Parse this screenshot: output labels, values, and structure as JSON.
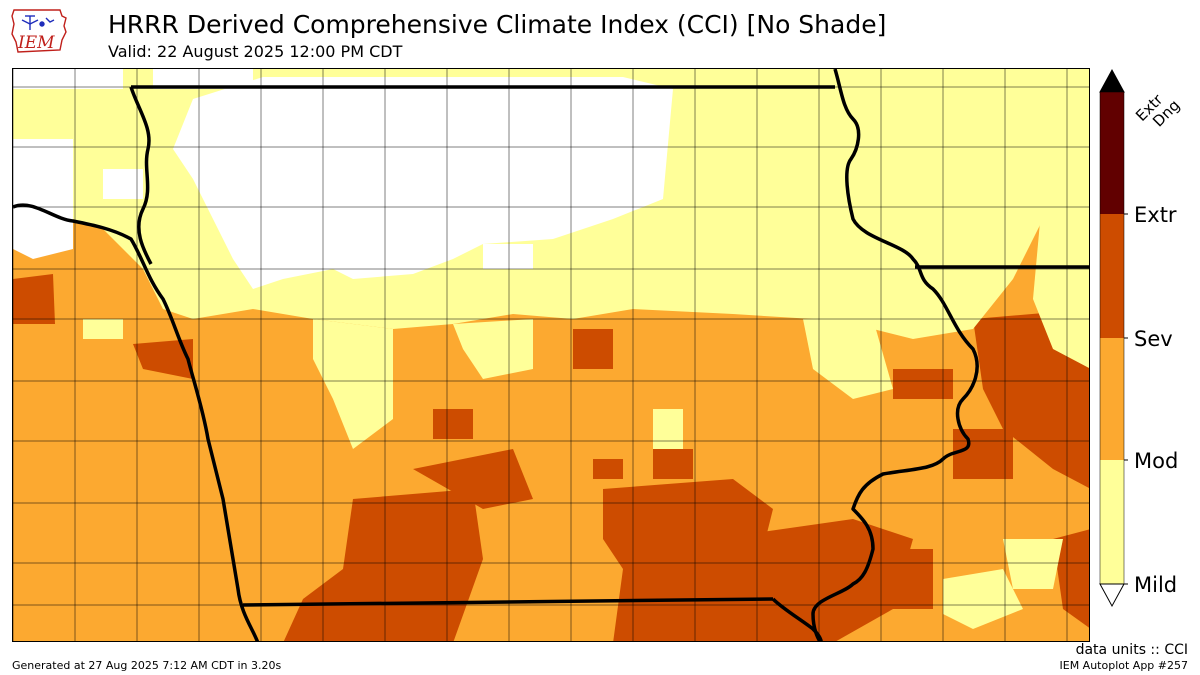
{
  "header": {
    "title": "HRRR Derived Comprehensive Climate Index (CCI) [No Shade]",
    "valid": "Valid: 22 August 2025 12:00 PM CDT"
  },
  "logo": {
    "text": "IEM",
    "icon": "iowa-state-outline-icon"
  },
  "legend": {
    "categories": [
      "Mild",
      "Mod",
      "Sev",
      "Extr",
      "Extr Dng"
    ],
    "colors": [
      "#ffff99",
      "#fca930",
      "#cd4c00",
      "#610000"
    ],
    "labels": {
      "mild": "Mild",
      "mod": "Mod",
      "sev": "Sev",
      "extr": "Extr",
      "extr_dng_1": "Extr",
      "extr_dng_2": "Dng"
    }
  },
  "footer": {
    "units": "data units :: CCI",
    "generated": "Generated at 27 Aug 2025 7:12 AM CDT in 3.20s",
    "app": "IEM Autoplot App #257"
  }
}
